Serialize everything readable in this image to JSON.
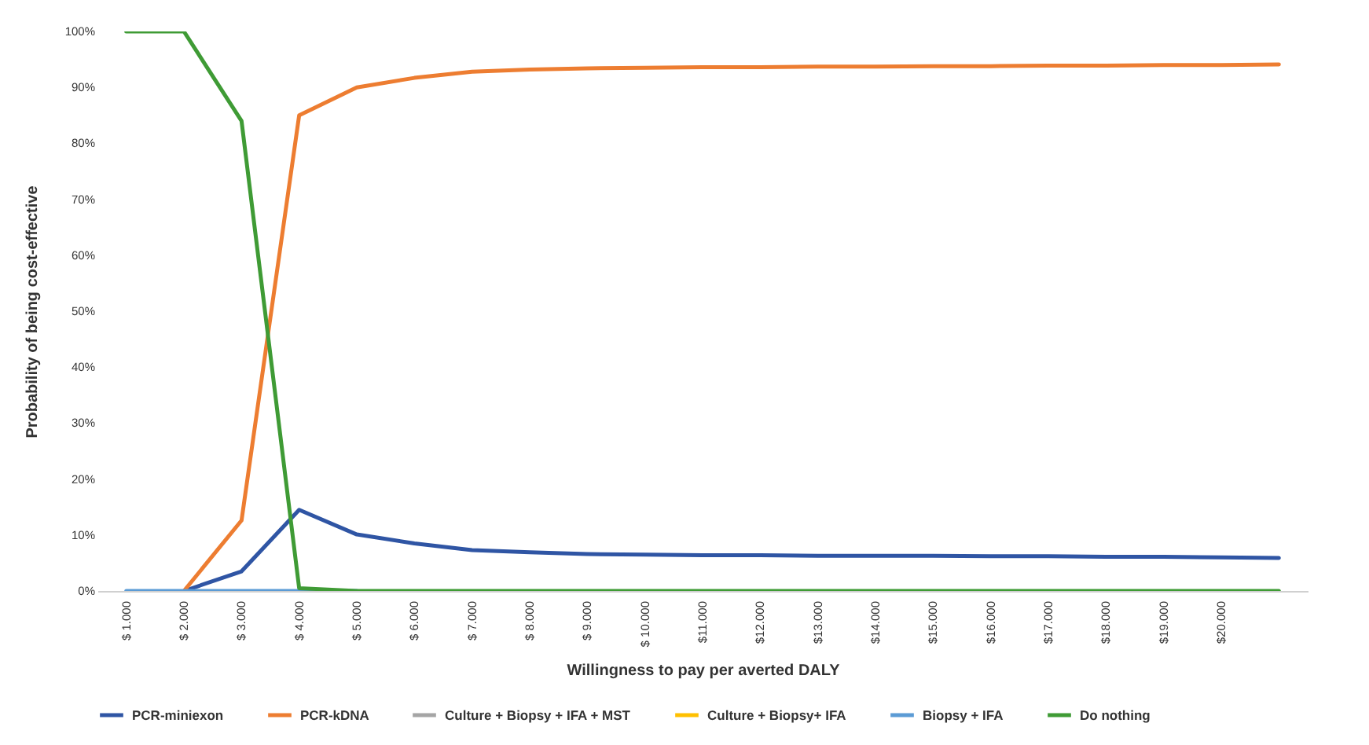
{
  "chart_data": {
    "type": "line",
    "xlabel": "Willingness to pay per averted DALY",
    "ylabel": "Probability of being cost-effective",
    "categories": [
      "$ 1.000",
      "$ 2.000",
      "$ 3.000",
      "$ 4.000",
      "$ 5.000",
      "$ 6.000",
      "$ 7.000",
      "$ 8.000",
      "$ 9.000",
      "$ 10.000",
      "$11.000",
      "$12.000",
      "$13.000",
      "$14.000",
      "$15.000",
      "$16.000",
      "$17.000",
      "$18.000",
      "$19.000",
      "$20.000",
      null
    ],
    "series": [
      {
        "name": "PCR-miniexon",
        "color": "#2f55a4",
        "values": [
          null,
          0,
          3.5,
          14.5,
          10.1,
          8.5,
          7.3,
          6.9,
          6.6,
          6.5,
          6.4,
          6.4,
          6.3,
          6.3,
          6.3,
          6.2,
          6.2,
          6.1,
          6.1,
          6.0,
          5.9
        ]
      },
      {
        "name": "PCR-kDNA",
        "color": "#ed7d31",
        "values": [
          null,
          0,
          12.6,
          85.0,
          90.0,
          91.7,
          92.8,
          93.2,
          93.4,
          93.5,
          93.6,
          93.6,
          93.7,
          93.7,
          93.8,
          93.8,
          93.9,
          93.9,
          94.0,
          94.0,
          94.1
        ]
      },
      {
        "name": "Culture + Biopsy + IFA + MST",
        "color": "#a5a5a5",
        "values": [
          null,
          null,
          null,
          null,
          null,
          null,
          null,
          null,
          null,
          null,
          null,
          null,
          null,
          null,
          null,
          null,
          null,
          null,
          null,
          null,
          null
        ]
      },
      {
        "name": "Culture + Biopsy+ IFA",
        "color": "#ffc000",
        "values": [
          null,
          null,
          null,
          null,
          null,
          null,
          null,
          null,
          null,
          null,
          null,
          null,
          null,
          null,
          null,
          null,
          null,
          null,
          null,
          null,
          null
        ]
      },
      {
        "name": "Biopsy + IFA",
        "color": "#5b9bd5",
        "values": [
          0,
          0,
          0,
          0,
          0,
          null,
          null,
          null,
          null,
          null,
          null,
          null,
          null,
          null,
          null,
          null,
          null,
          null,
          null,
          null,
          null
        ]
      },
      {
        "name": "Do nothing",
        "color": "#3f9b35",
        "values": [
          100,
          100,
          84,
          0.5,
          0,
          0,
          0,
          0,
          0,
          0,
          0,
          0,
          0,
          0,
          0,
          0,
          0,
          0,
          0,
          0,
          0
        ]
      }
    ],
    "ylim": [
      0,
      100
    ],
    "yticks": [
      {
        "value": 0,
        "label": "0%"
      },
      {
        "value": 10,
        "label": "10%"
      },
      {
        "value": 20,
        "label": "20%"
      },
      {
        "value": 30,
        "label": "30%"
      },
      {
        "value": 40,
        "label": "40%"
      },
      {
        "value": 50,
        "label": "50%"
      },
      {
        "value": 60,
        "label": "60%"
      },
      {
        "value": 70,
        "label": "70%"
      },
      {
        "value": 80,
        "label": "80%"
      },
      {
        "value": 90,
        "label": "90%"
      },
      {
        "value": 100,
        "label": "100%"
      }
    ],
    "legend": "bottom"
  }
}
